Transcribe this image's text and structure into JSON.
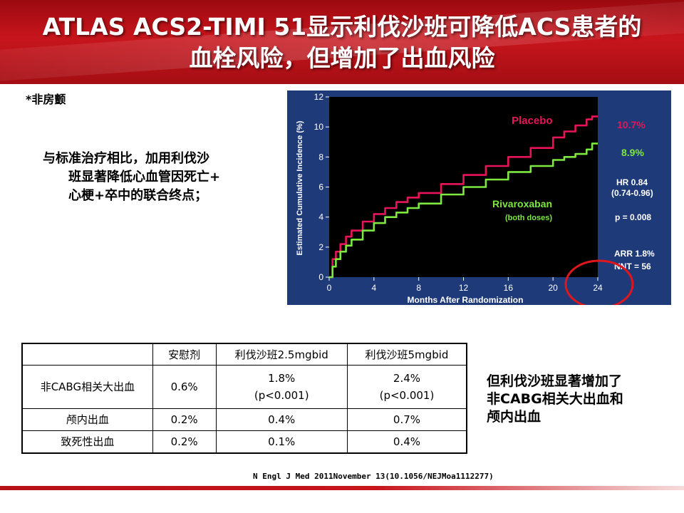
{
  "header": {
    "title_line1": "ATLAS ACS2-TIMI 51显示利伐沙班可降低ACS患者的",
    "title_line2": "血栓风险，但增加了出血风险"
  },
  "note": "*非房颤",
  "key_point": {
    "line1": "与标准治疗相比，加用利伐沙",
    "line2": "班显著降低心血管因死亡+",
    "line3": "心梗+卒中的联合终点；"
  },
  "chart_data": {
    "type": "line",
    "ylabel": "Estimated Cumulative Incidence (%)",
    "xlabel": "Months After Randomization",
    "x_ticks": [
      0,
      4,
      8,
      12,
      16,
      20,
      24
    ],
    "y_ticks": [
      0,
      2,
      4,
      6,
      8,
      10,
      12
    ],
    "xlim": [
      0,
      24
    ],
    "ylim": [
      0,
      12
    ],
    "grid": false,
    "series": [
      {
        "name": "Placebo",
        "color": "#e8145a",
        "end_label": "10.7%",
        "x": [
          0,
          0.3,
          0.6,
          1,
          1.5,
          2,
          3,
          4,
          5,
          6,
          7,
          8,
          10,
          12,
          14,
          16,
          18,
          20,
          21,
          22,
          23,
          23.5,
          24
        ],
        "y": [
          0,
          1.2,
          1.7,
          2.2,
          2.7,
          3.1,
          3.7,
          4.2,
          4.6,
          5.0,
          5.3,
          5.6,
          6.2,
          6.8,
          7.4,
          8.0,
          8.6,
          9.3,
          9.7,
          10.1,
          10.5,
          10.7,
          10.7
        ]
      },
      {
        "name": "Rivaroxaban",
        "sublabel": "(both doses)",
        "color": "#7de840",
        "end_label": "8.9%",
        "x": [
          0,
          0.3,
          0.6,
          1,
          1.5,
          2,
          3,
          4,
          5,
          6,
          7,
          8,
          10,
          12,
          14,
          16,
          18,
          20,
          21,
          22,
          23,
          23.5,
          24
        ],
        "y": [
          0,
          0.7,
          1.2,
          1.7,
          2.1,
          2.5,
          3.1,
          3.6,
          4.0,
          4.3,
          4.6,
          4.9,
          5.5,
          6.0,
          6.5,
          7.0,
          7.4,
          7.8,
          8.0,
          8.2,
          8.5,
          8.9,
          8.9
        ]
      }
    ],
    "stats": {
      "hr": "HR 0.84",
      "ci": "(0.74-0.96)",
      "p": "p = 0.008",
      "arr": "ARR 1.8%",
      "nnt": "NNT = 56"
    },
    "colors": {
      "background": "#1e3a78",
      "plot_area": "#000000",
      "highlight_circle": "#e0161c"
    }
  },
  "bleeding_table": {
    "headers": [
      "",
      "安慰剂",
      "利伐沙班2.5mgbid",
      "利伐沙班5mgbid"
    ],
    "rows": [
      {
        "label": "非CABG相关大出血",
        "placebo": "0.6%",
        "riva25": "1.8%",
        "riva25_p": "(p<0.001)",
        "riva5": "2.4%",
        "riva5_p": "(p<0.001)"
      },
      {
        "label": "颅内出血",
        "placebo": "0.2%",
        "riva25": "0.4%",
        "riva5": "0.7%"
      },
      {
        "label": "致死性出血",
        "placebo": "0.2%",
        "riva25": "0.1%",
        "riva5": "0.4%"
      }
    ]
  },
  "conclusion": {
    "line1": "但利伐沙班显著增加了",
    "line2": "非CABG相关大出血和",
    "line3": "颅内出血"
  },
  "reference": "N Engl J Med 2011November 13(10.1056/NEJMoa1112277)"
}
